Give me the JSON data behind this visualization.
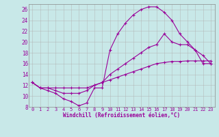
{
  "xlabel": "Windchill (Refroidissement éolien,°C)",
  "bg_color": "#c8e8e8",
  "line_color": "#990099",
  "grid_color": "#b0b0b0",
  "xlim": [
    -0.5,
    23.5
  ],
  "ylim": [
    8,
    27
  ],
  "yticks": [
    8,
    10,
    12,
    14,
    16,
    18,
    20,
    22,
    24,
    26
  ],
  "xticks": [
    0,
    1,
    2,
    3,
    4,
    5,
    6,
    7,
    8,
    9,
    10,
    11,
    12,
    13,
    14,
    15,
    16,
    17,
    18,
    19,
    20,
    21,
    22,
    23
  ],
  "line1_x": [
    0,
    1,
    2,
    3,
    4,
    5,
    6,
    7,
    8,
    9,
    10,
    11,
    12,
    13,
    14,
    15,
    16,
    17,
    18,
    19,
    20,
    21,
    22,
    23
  ],
  "line1_y": [
    12.5,
    11.5,
    11.0,
    10.5,
    9.5,
    9.0,
    8.2,
    8.7,
    11.5,
    11.5,
    18.5,
    21.5,
    23.5,
    25.0,
    26.0,
    26.5,
    26.5,
    25.5,
    24.0,
    21.5,
    20.0,
    18.5,
    16.0,
    16.0
  ],
  "line2_x": [
    0,
    1,
    2,
    3,
    4,
    5,
    6,
    7,
    8,
    9,
    10,
    11,
    12,
    13,
    14,
    15,
    16,
    17,
    18,
    19,
    20,
    21,
    22,
    23
  ],
  "line2_y": [
    12.5,
    11.5,
    11.5,
    11.0,
    10.5,
    10.5,
    10.5,
    11.0,
    12.0,
    12.5,
    13.0,
    13.5,
    14.0,
    14.5,
    15.0,
    15.5,
    16.0,
    16.2,
    16.4,
    16.4,
    16.5,
    16.5,
    16.5,
    16.5
  ],
  "line3_x": [
    0,
    1,
    2,
    3,
    4,
    5,
    6,
    7,
    8,
    9,
    10,
    11,
    12,
    13,
    14,
    15,
    16,
    17,
    18,
    19,
    20,
    21,
    22,
    23
  ],
  "line3_y": [
    12.5,
    11.5,
    11.5,
    11.5,
    11.5,
    11.5,
    11.5,
    11.5,
    12.0,
    12.5,
    14.0,
    15.0,
    16.0,
    17.0,
    18.0,
    19.0,
    19.5,
    21.5,
    20.0,
    19.5,
    19.5,
    18.5,
    17.5,
    16.0
  ]
}
